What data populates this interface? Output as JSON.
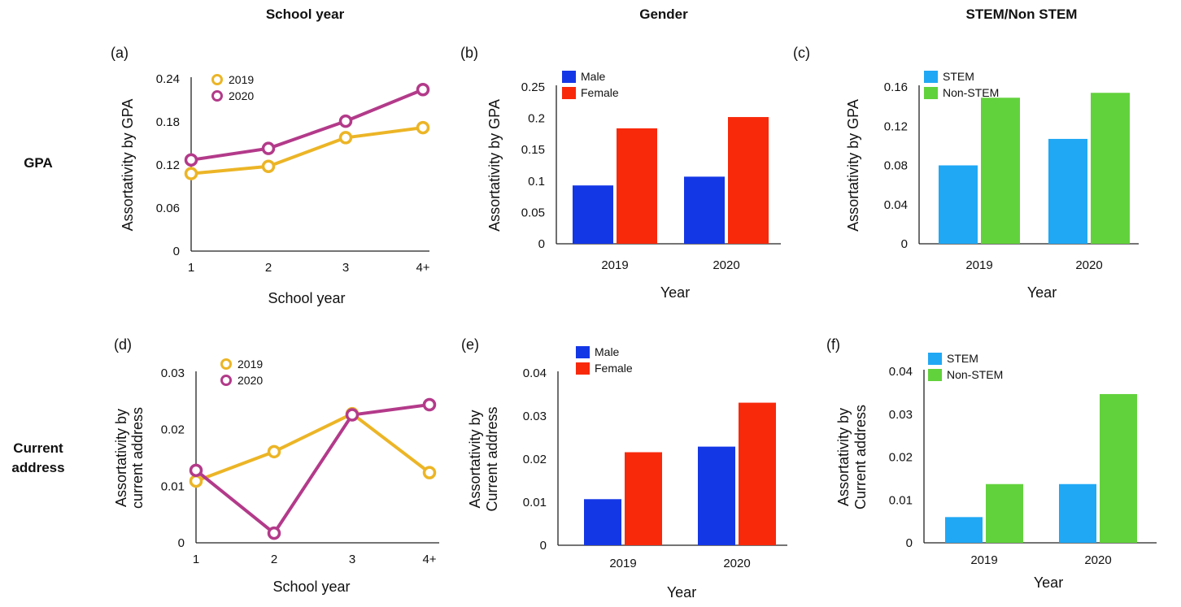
{
  "headers": {
    "col1": "School year",
    "col2": "Gender",
    "col3": "STEM/Non STEM",
    "row1": "GPA",
    "row2a": "Current",
    "row2b": "address"
  },
  "colors": {
    "y2019": "#ecb526",
    "y2020": "#b33a8a",
    "male": "#1437e6",
    "female": "#f8290b",
    "stem": "#20a8f5",
    "nonstem": "#62d23c"
  },
  "chart_data": [
    {
      "id": "a",
      "panel_label": "(a)",
      "type": "line",
      "xlabel": "School year",
      "ylabel": [
        "Assortativity by GPA"
      ],
      "categories": [
        "1",
        "2",
        "3",
        "4+"
      ],
      "ylim": [
        0,
        0.24
      ],
      "yticks": [
        "0",
        "0.06",
        "0.12",
        "0.18",
        "0.24"
      ],
      "series": [
        {
          "name": "2019",
          "color_key": "y2019",
          "values": [
            0.108,
            0.118,
            0.158,
            0.172
          ]
        },
        {
          "name": "2020",
          "color_key": "y2020",
          "values": [
            0.127,
            0.143,
            0.181,
            0.225
          ]
        }
      ]
    },
    {
      "id": "b",
      "panel_label": "(b)",
      "type": "bar",
      "xlabel": "Year",
      "ylabel": [
        "Assortativity by GPA"
      ],
      "categories": [
        "2019",
        "2020"
      ],
      "ylim": [
        0,
        0.25
      ],
      "yticks": [
        "0",
        "0.05",
        "0.1",
        "0.15",
        "0.2",
        "0.25"
      ],
      "series": [
        {
          "name": "Male",
          "color_key": "male",
          "values": [
            0.093,
            0.107
          ]
        },
        {
          "name": "Female",
          "color_key": "female",
          "values": [
            0.184,
            0.202
          ]
        }
      ]
    },
    {
      "id": "c",
      "panel_label": "(c)",
      "type": "bar",
      "xlabel": "Year",
      "ylabel": [
        "Assortativity by GPA"
      ],
      "categories": [
        "2019",
        "2020"
      ],
      "ylim": [
        0,
        0.16
      ],
      "yticks": [
        "0",
        "0.04",
        "0.08",
        "0.12",
        "0.16"
      ],
      "series": [
        {
          "name": "STEM",
          "color_key": "stem",
          "values": [
            0.08,
            0.107
          ]
        },
        {
          "name": "Non-STEM",
          "color_key": "nonstem",
          "values": [
            0.149,
            0.154
          ]
        }
      ]
    },
    {
      "id": "d",
      "panel_label": "(d)",
      "type": "line",
      "xlabel": "School year",
      "ylabel": [
        "Assortativity by",
        "current address"
      ],
      "categories": [
        "1",
        "2",
        "3",
        "4+"
      ],
      "ylim": [
        0,
        0.03
      ],
      "yticks": [
        "0",
        "0.01",
        "0.02",
        "0.03"
      ],
      "series": [
        {
          "name": "2019",
          "color_key": "y2019",
          "values": [
            0.0109,
            0.0161,
            0.0228,
            0.0124
          ]
        },
        {
          "name": "2020",
          "color_key": "y2020",
          "values": [
            0.0128,
            0.0017,
            0.0226,
            0.0244
          ]
        }
      ]
    },
    {
      "id": "e",
      "panel_label": "(e)",
      "type": "bar",
      "xlabel": "Year",
      "ylabel": [
        "Assortativity by",
        "Current address"
      ],
      "categories": [
        "2019",
        "2020"
      ],
      "ylim": [
        0,
        0.04
      ],
      "yticks": [
        "0",
        "0.01",
        "0.02",
        "0.03",
        "0.04"
      ],
      "series": [
        {
          "name": "Male",
          "color_key": "male",
          "values": [
            0.0107,
            0.0229
          ]
        },
        {
          "name": "Female",
          "color_key": "female",
          "values": [
            0.0216,
            0.0331
          ]
        }
      ]
    },
    {
      "id": "f",
      "panel_label": "(f)",
      "type": "bar",
      "xlabel": "Year",
      "ylabel": [
        "Assortativity by",
        "Current address"
      ],
      "categories": [
        "2019",
        "2020"
      ],
      "ylim": [
        0,
        0.04
      ],
      "yticks": [
        "0",
        "0.01",
        "0.02",
        "0.03",
        "0.04"
      ],
      "series": [
        {
          "name": "STEM",
          "color_key": "stem",
          "values": [
            0.006,
            0.0137
          ]
        },
        {
          "name": "Non-STEM",
          "color_key": "nonstem",
          "values": [
            0.0137,
            0.0347
          ]
        }
      ]
    }
  ]
}
